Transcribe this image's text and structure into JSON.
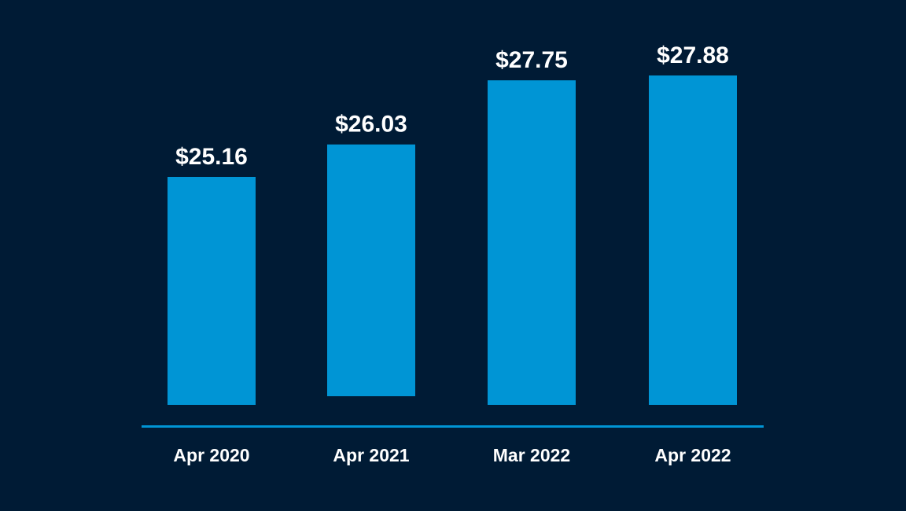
{
  "chart_data": {
    "type": "bar",
    "categories": [
      "Apr 2020",
      "Apr 2021",
      "Mar 2022",
      "Apr 2022"
    ],
    "values": [
      25.16,
      26.03,
      27.75,
      27.88
    ],
    "value_labels": [
      "$25.16",
      "$26.03",
      "$27.75",
      "$27.88"
    ],
    "title": "",
    "xlabel": "",
    "ylabel": "",
    "grid": false,
    "legend": "none"
  },
  "colors": {
    "background": "#001b35",
    "bar": "#0095d5",
    "axis_line": "#0095d5",
    "text": "#ffffff"
  }
}
